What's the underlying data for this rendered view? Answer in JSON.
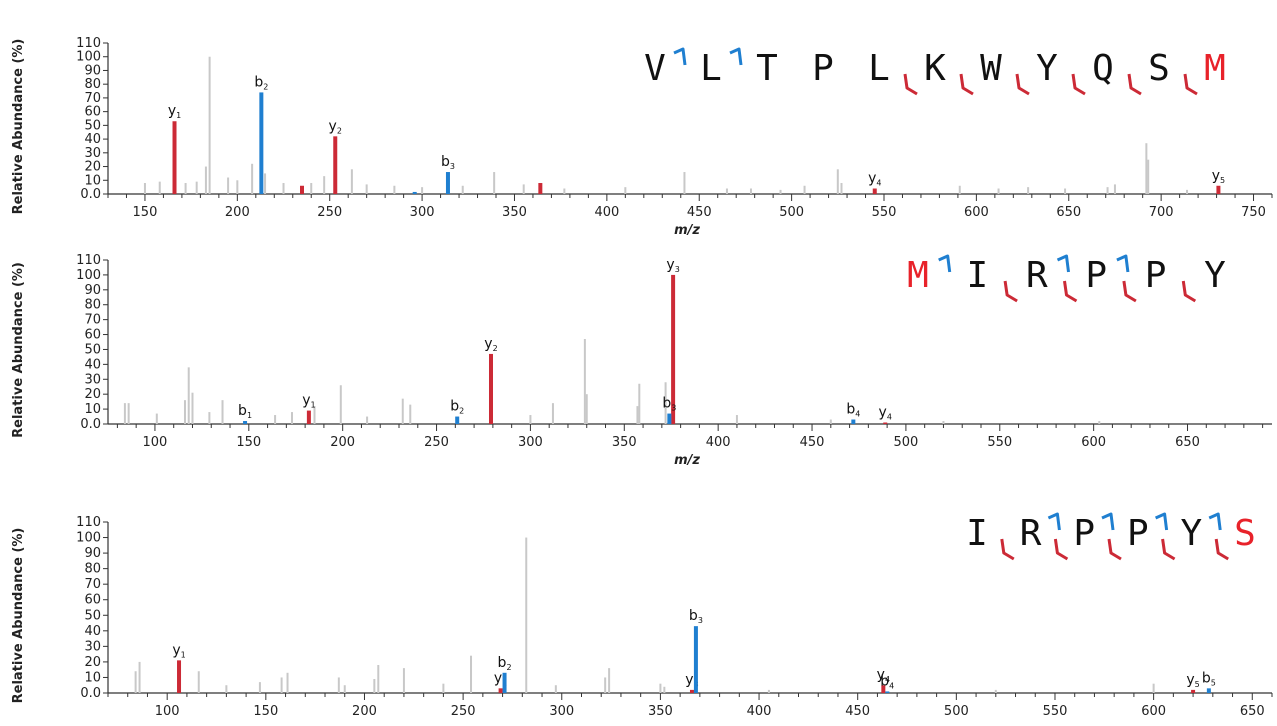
{
  "chart_data": [
    {
      "type": "bar",
      "ylabel": "Relative Abundance (%)",
      "xlabel": "m/z",
      "xlim": [
        130,
        760
      ],
      "ylim": [
        0,
        110
      ],
      "xticks": [
        150,
        200,
        250,
        300,
        350,
        400,
        450,
        500,
        550,
        600,
        650,
        700,
        750
      ],
      "yticks": [
        "0.0",
        "10",
        "20",
        "30",
        "40",
        "50",
        "60",
        "70",
        "80",
        "90",
        "100",
        "110"
      ],
      "sequence": [
        "V",
        "L",
        "T",
        "P",
        "L",
        "K",
        "W",
        "Y",
        "Q",
        "S",
        "M"
      ],
      "sequence_highlight": [
        10
      ],
      "b_breaks": [
        1,
        2
      ],
      "y_breaks": [
        5,
        6,
        7,
        8,
        9,
        10
      ],
      "colors": {
        "b": "#1f7fd0",
        "y": "#cc2a36",
        "other": "#c8c8c8",
        "highlight": "#e8222a"
      },
      "series": [
        {
          "name": "b",
          "peaks": [
            {
              "label": "b",
              "sub": "2",
              "mz": 213,
              "value": 74
            },
            {
              "label": "b",
              "sub": "3",
              "mz": 314,
              "value": 16
            },
            {
              "label": "",
              "sub": "",
              "mz": 296,
              "value": 1.5
            }
          ]
        },
        {
          "name": "y",
          "peaks": [
            {
              "label": "y",
              "sub": "1",
              "mz": 166,
              "value": 53
            },
            {
              "label": "y",
              "sub": "2",
              "mz": 253,
              "value": 42
            },
            {
              "label": "y",
              "sub": "4",
              "mz": 545,
              "value": 4
            },
            {
              "label": "y",
              "sub": "5",
              "mz": 731,
              "value": 6
            },
            {
              "label": "",
              "sub": "",
              "mz": 235,
              "value": 6
            },
            {
              "label": "",
              "sub": "",
              "mz": 364,
              "value": 8
            }
          ]
        },
        {
          "name": "other",
          "peaks": [
            {
              "mz": 185,
              "value": 100
            },
            {
              "mz": 692,
              "value": 37
            },
            {
              "mz": 693,
              "value": 25
            },
            {
              "mz": 183,
              "value": 20
            },
            {
              "mz": 208,
              "value": 22
            },
            {
              "mz": 215,
              "value": 15
            },
            {
              "mz": 262,
              "value": 18
            },
            {
              "mz": 339,
              "value": 16
            },
            {
              "mz": 442,
              "value": 16
            },
            {
              "mz": 525,
              "value": 18
            },
            {
              "mz": 527,
              "value": 8
            },
            {
              "mz": 150,
              "value": 8
            },
            {
              "mz": 158,
              "value": 9
            },
            {
              "mz": 172,
              "value": 8
            },
            {
              "mz": 178,
              "value": 9
            },
            {
              "mz": 195,
              "value": 12
            },
            {
              "mz": 200,
              "value": 10
            },
            {
              "mz": 225,
              "value": 8
            },
            {
              "mz": 240,
              "value": 8
            },
            {
              "mz": 247,
              "value": 13
            },
            {
              "mz": 270,
              "value": 7
            },
            {
              "mz": 285,
              "value": 6
            },
            {
              "mz": 300,
              "value": 5
            },
            {
              "mz": 322,
              "value": 6
            },
            {
              "mz": 355,
              "value": 7
            },
            {
              "mz": 377,
              "value": 4
            },
            {
              "mz": 410,
              "value": 5
            },
            {
              "mz": 465,
              "value": 4
            },
            {
              "mz": 478,
              "value": 4
            },
            {
              "mz": 494,
              "value": 3
            },
            {
              "mz": 507,
              "value": 6
            },
            {
              "mz": 591,
              "value": 6
            },
            {
              "mz": 612,
              "value": 4
            },
            {
              "mz": 628,
              "value": 5
            },
            {
              "mz": 648,
              "value": 4
            },
            {
              "mz": 671,
              "value": 5
            },
            {
              "mz": 675,
              "value": 7
            },
            {
              "mz": 714,
              "value": 3
            }
          ]
        }
      ]
    },
    {
      "type": "bar",
      "ylabel": "Relative Abundance (%)",
      "xlabel": "m/z",
      "xlim": [
        75,
        695
      ],
      "ylim": [
        0,
        110
      ],
      "xticks": [
        100,
        150,
        200,
        250,
        300,
        350,
        400,
        450,
        500,
        550,
        600,
        650
      ],
      "yticks": [
        "0.0",
        "10",
        "20",
        "30",
        "40",
        "50",
        "60",
        "70",
        "80",
        "90",
        "100",
        "110"
      ],
      "sequence": [
        "M",
        "I",
        "R",
        "P",
        "P",
        "Y"
      ],
      "sequence_highlight": [
        0
      ],
      "b_breaks": [
        1,
        3,
        4
      ],
      "y_breaks": [
        2,
        3,
        4,
        5
      ],
      "colors": {
        "b": "#1f7fd0",
        "y": "#cc2a36",
        "other": "#c8c8c8",
        "highlight": "#e8222a"
      },
      "series": [
        {
          "name": "b",
          "peaks": [
            {
              "label": "b",
              "sub": "1",
              "mz": 148,
              "value": 2
            },
            {
              "label": "b",
              "sub": "2",
              "mz": 261,
              "value": 5
            },
            {
              "label": "b",
              "sub": "3",
              "mz": 374,
              "value": 7
            },
            {
              "label": "b",
              "sub": "4",
              "mz": 472,
              "value": 3
            }
          ]
        },
        {
          "name": "y",
          "peaks": [
            {
              "label": "y",
              "sub": "1",
              "mz": 182,
              "value": 9
            },
            {
              "label": "y",
              "sub": "2",
              "mz": 279,
              "value": 47
            },
            {
              "label": "y",
              "sub": "3",
              "mz": 376,
              "value": 100
            },
            {
              "label": "y",
              "sub": "4",
              "mz": 489,
              "value": 1
            }
          ]
        },
        {
          "name": "other",
          "peaks": [
            {
              "mz": 84,
              "value": 14
            },
            {
              "mz": 86,
              "value": 14
            },
            {
              "mz": 101,
              "value": 7
            },
            {
              "mz": 116,
              "value": 16
            },
            {
              "mz": 118,
              "value": 38
            },
            {
              "mz": 120,
              "value": 21
            },
            {
              "mz": 129,
              "value": 8
            },
            {
              "mz": 136,
              "value": 16
            },
            {
              "mz": 164,
              "value": 6
            },
            {
              "mz": 173,
              "value": 8
            },
            {
              "mz": 185,
              "value": 12
            },
            {
              "mz": 199,
              "value": 26
            },
            {
              "mz": 213,
              "value": 5
            },
            {
              "mz": 232,
              "value": 17
            },
            {
              "mz": 236,
              "value": 13
            },
            {
              "mz": 300,
              "value": 6
            },
            {
              "mz": 312,
              "value": 14
            },
            {
              "mz": 329,
              "value": 57
            },
            {
              "mz": 330,
              "value": 20
            },
            {
              "mz": 357,
              "value": 12
            },
            {
              "mz": 358,
              "value": 27
            },
            {
              "mz": 372,
              "value": 28
            },
            {
              "mz": 410,
              "value": 6
            },
            {
              "mz": 460,
              "value": 3
            },
            {
              "mz": 520,
              "value": 2
            },
            {
              "mz": 603,
              "value": 2
            }
          ]
        }
      ]
    },
    {
      "type": "bar",
      "ylabel": "Relative Abundance (%)",
      "xlabel": "",
      "xlim": [
        70,
        660
      ],
      "ylim": [
        0,
        110
      ],
      "xticks": [
        100,
        150,
        200,
        250,
        300,
        350,
        400,
        450,
        500,
        550,
        600,
        650
      ],
      "yticks": [
        "0.0",
        "10",
        "20",
        "30",
        "40",
        "50",
        "60",
        "70",
        "80",
        "90",
        "100",
        "110"
      ],
      "sequence": [
        "I",
        "R",
        "P",
        "P",
        "Y",
        "S"
      ],
      "sequence_highlight": [
        5
      ],
      "b_breaks": [
        2,
        3,
        4,
        5
      ],
      "y_breaks": [
        1,
        2,
        3,
        4,
        5
      ],
      "colors": {
        "b": "#1f7fd0",
        "y": "#cc2a36",
        "other": "#c8c8c8",
        "highlight": "#e8222a"
      },
      "series": [
        {
          "name": "b",
          "peaks": [
            {
              "label": "b",
              "sub": "2",
              "mz": 271,
              "value": 13
            },
            {
              "label": "b",
              "sub": "3",
              "mz": 368,
              "value": 43
            },
            {
              "label": "b",
              "sub": "4",
              "mz": 465,
              "value": 1
            },
            {
              "label": "b",
              "sub": "5",
              "mz": 628,
              "value": 3
            }
          ]
        },
        {
          "name": "y",
          "peaks": [
            {
              "label": "y",
              "sub": "1",
              "mz": 106,
              "value": 21
            },
            {
              "label": "y",
              "sub": "2",
              "mz": 269,
              "value": 3
            },
            {
              "label": "y",
              "sub": "3",
              "mz": 366,
              "value": 2
            },
            {
              "label": "y",
              "sub": "4",
              "mz": 463,
              "value": 5
            },
            {
              "label": "y",
              "sub": "5",
              "mz": 620,
              "value": 2
            }
          ]
        },
        {
          "name": "other",
          "peaks": [
            {
              "mz": 282,
              "value": 100
            },
            {
              "mz": 86,
              "value": 20
            },
            {
              "mz": 84,
              "value": 14
            },
            {
              "mz": 116,
              "value": 14
            },
            {
              "mz": 130,
              "value": 5
            },
            {
              "mz": 147,
              "value": 7
            },
            {
              "mz": 158,
              "value": 10
            },
            {
              "mz": 161,
              "value": 13
            },
            {
              "mz": 187,
              "value": 10
            },
            {
              "mz": 190,
              "value": 5
            },
            {
              "mz": 205,
              "value": 9
            },
            {
              "mz": 207,
              "value": 18
            },
            {
              "mz": 220,
              "value": 16
            },
            {
              "mz": 240,
              "value": 6
            },
            {
              "mz": 254,
              "value": 24
            },
            {
              "mz": 297,
              "value": 5
            },
            {
              "mz": 322,
              "value": 10
            },
            {
              "mz": 324,
              "value": 16
            },
            {
              "mz": 350,
              "value": 6
            },
            {
              "mz": 352,
              "value": 4
            },
            {
              "mz": 405,
              "value": 2
            },
            {
              "mz": 520,
              "value": 2
            },
            {
              "mz": 600,
              "value": 6
            }
          ]
        }
      ]
    }
  ]
}
